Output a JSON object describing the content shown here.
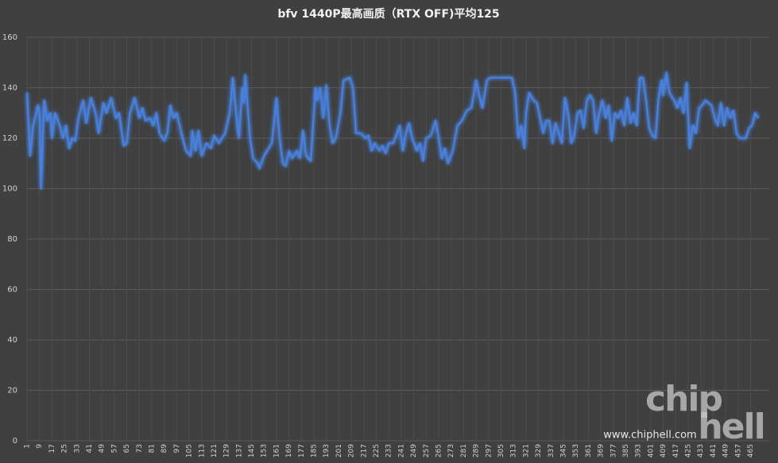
{
  "chart_data": {
    "type": "line",
    "title": "bfv 1440P最高画质（RTX OFF)平均125",
    "x": [
      1,
      3,
      5,
      8,
      9,
      10,
      12,
      14,
      16,
      17,
      19,
      22,
      24,
      26,
      27,
      28,
      30,
      32,
      34,
      37,
      39,
      42,
      45,
      47,
      50,
      52,
      55,
      58,
      60,
      63,
      65,
      67,
      70,
      73,
      75,
      77,
      80,
      82,
      84,
      86,
      89,
      91,
      93,
      95,
      97,
      100,
      103,
      106,
      107,
      109,
      111,
      113,
      116,
      119,
      121,
      124,
      126,
      128,
      131,
      133,
      136,
      137,
      139,
      140,
      141,
      144,
      146,
      149,
      150,
      153,
      156,
      158,
      160,
      161,
      163,
      165,
      167,
      169,
      171,
      174,
      176,
      178,
      180,
      183,
      186,
      187,
      189,
      191,
      193,
      195,
      197,
      199,
      202,
      204,
      208,
      210,
      212,
      215,
      218,
      220,
      222,
      224,
      227,
      229,
      231,
      233,
      236,
      240,
      242,
      244,
      246,
      248,
      251,
      253,
      255,
      257,
      260,
      263,
      265,
      267,
      269,
      271,
      274,
      277,
      280,
      283,
      286,
      289,
      291,
      293,
      296,
      298,
      312,
      314,
      316,
      318,
      320,
      321,
      323,
      326,
      328,
      330,
      332,
      334,
      336,
      338,
      340,
      342,
      344,
      346,
      348,
      350,
      352,
      354,
      356,
      358,
      360,
      362,
      364,
      366,
      368,
      370,
      372,
      374,
      376,
      378,
      380,
      382,
      384,
      386,
      388,
      390,
      392,
      394,
      396,
      398,
      400,
      402,
      404,
      406,
      408,
      409,
      411,
      413,
      416,
      418,
      420,
      422,
      424,
      426,
      428,
      430,
      432,
      434,
      436,
      438,
      440,
      442,
      444,
      446,
      448,
      450,
      452,
      454,
      456,
      458,
      462,
      464,
      466,
      468,
      470
    ],
    "values": [
      138,
      113,
      125,
      133,
      130,
      100,
      135,
      127,
      130,
      120,
      130,
      125,
      120,
      125,
      120,
      116,
      120,
      119,
      128,
      135,
      126,
      136,
      130,
      122,
      134,
      130,
      136,
      128,
      130,
      117,
      118,
      130,
      136,
      128,
      132,
      127,
      128,
      125,
      130,
      122,
      119,
      122,
      133,
      128,
      130,
      122,
      115,
      113,
      123,
      115,
      123,
      113,
      118,
      116,
      121,
      118,
      120,
      122,
      130,
      144,
      124,
      120,
      140,
      134,
      145,
      120,
      112,
      110,
      108,
      113,
      116,
      118,
      130,
      136,
      120,
      110,
      109,
      115,
      112,
      115,
      112,
      123,
      113,
      111,
      140,
      135,
      140,
      128,
      141,
      125,
      118,
      120,
      130,
      143,
      144,
      140,
      122,
      122,
      120,
      121,
      115,
      118,
      115,
      117,
      114,
      118,
      118,
      125,
      115,
      122,
      126,
      120,
      115,
      118,
      111,
      120,
      121,
      127,
      120,
      112,
      116,
      110,
      115,
      125,
      127,
      131,
      132,
      143,
      137,
      132,
      143,
      144,
      144,
      138,
      120,
      125,
      116,
      130,
      138,
      135,
      134,
      128,
      122,
      127,
      127,
      118,
      126,
      122,
      118,
      136,
      130,
      118,
      121,
      130,
      131,
      124,
      135,
      137,
      135,
      122,
      130,
      135,
      128,
      133,
      119,
      130,
      128,
      131,
      125,
      136,
      126,
      130,
      125,
      144,
      144,
      135,
      124,
      121,
      120,
      136,
      143,
      137,
      146,
      138,
      135,
      132,
      136,
      130,
      142,
      116,
      125,
      122,
      132,
      133,
      135,
      134,
      133,
      128,
      125,
      134,
      125,
      132,
      128,
      131,
      122,
      120,
      120,
      124,
      125,
      130,
      128
    ],
    "color": "#4a80dc",
    "xlim": [
      0.5,
      477
    ],
    "ylim": [
      0,
      160
    ],
    "xticks": [
      1,
      9,
      17,
      25,
      33,
      41,
      49,
      57,
      65,
      73,
      81,
      89,
      97,
      105,
      113,
      121,
      129,
      137,
      145,
      153,
      161,
      169,
      177,
      185,
      193,
      201,
      209,
      217,
      225,
      233,
      241,
      249,
      257,
      265,
      273,
      281,
      289,
      297,
      305,
      313,
      321,
      329,
      337,
      345,
      353,
      361,
      369,
      377,
      385,
      393,
      401,
      409,
      417,
      425,
      433,
      441,
      449,
      457,
      465
    ],
    "yticks": [
      0,
      20,
      40,
      60,
      80,
      100,
      120,
      140,
      160
    ],
    "grid": true
  },
  "watermark": {
    "logo_top": "chip",
    "logo_bottom": "hell",
    "url": "www.chiphell.com"
  }
}
